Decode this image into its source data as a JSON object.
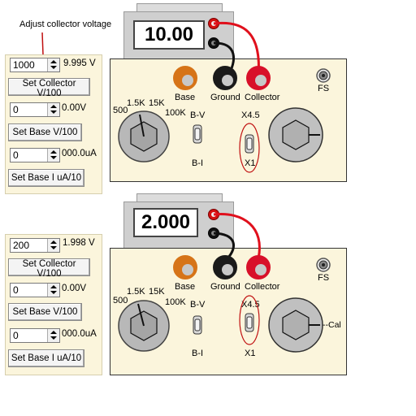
{
  "annotation": "Adjust collector voltage",
  "units": {
    "collector": "V",
    "base_v": "V",
    "base_i": "uA"
  },
  "top": {
    "meter_reading": "10.00",
    "collector_input": "1000",
    "collector_value": "9.995 V",
    "collector_button": "Set Collector V/100",
    "base_v_input": "0",
    "base_v_value": "0.00V",
    "base_v_button": "Set Base V/100",
    "base_i_input": "0",
    "base_i_value": "000.0uA",
    "base_i_button": "Set Base I uA/10",
    "knob_labels": {
      "l500": "500",
      "l1_5k": "1.5K",
      "l15k": "15K",
      "l100k": "100K"
    },
    "switch_bv_top": "B-V",
    "switch_bv_bottom": "B-I",
    "switch_range_top": "X4.5",
    "switch_range_bottom": "X1",
    "terminal_base": "Base",
    "terminal_ground": "Ground",
    "terminal_collector": "Collector",
    "fs_label": "FS",
    "cal_label": ""
  },
  "bottom": {
    "meter_reading": "2.000",
    "collector_input": "200",
    "collector_value": "1.998 V",
    "collector_button": "Set Collector V/100",
    "base_v_input": "0",
    "base_v_value": "0.00V",
    "base_v_button": "Set Base V/100",
    "base_i_input": "0",
    "base_i_value": "000.0uA",
    "base_i_button": "Set Base I uA/10",
    "knob_labels": {
      "l500": "500",
      "l1_5k": "1.5K",
      "l15k": "15K",
      "l100k": "100K"
    },
    "switch_bv_top": "B-V",
    "switch_bv_bottom": "B-I",
    "switch_range_top": "X4.5",
    "switch_range_bottom": "X1",
    "terminal_base": "Base",
    "terminal_ground": "Ground",
    "terminal_collector": "Collector",
    "fs_label": "FS",
    "cal_label": "--Cal"
  },
  "colors": {
    "panel_bg": "#fbf5dc",
    "red_wire": "#e0101c",
    "black_wire": "#111111",
    "annotation_arrow": "#c01010"
  }
}
